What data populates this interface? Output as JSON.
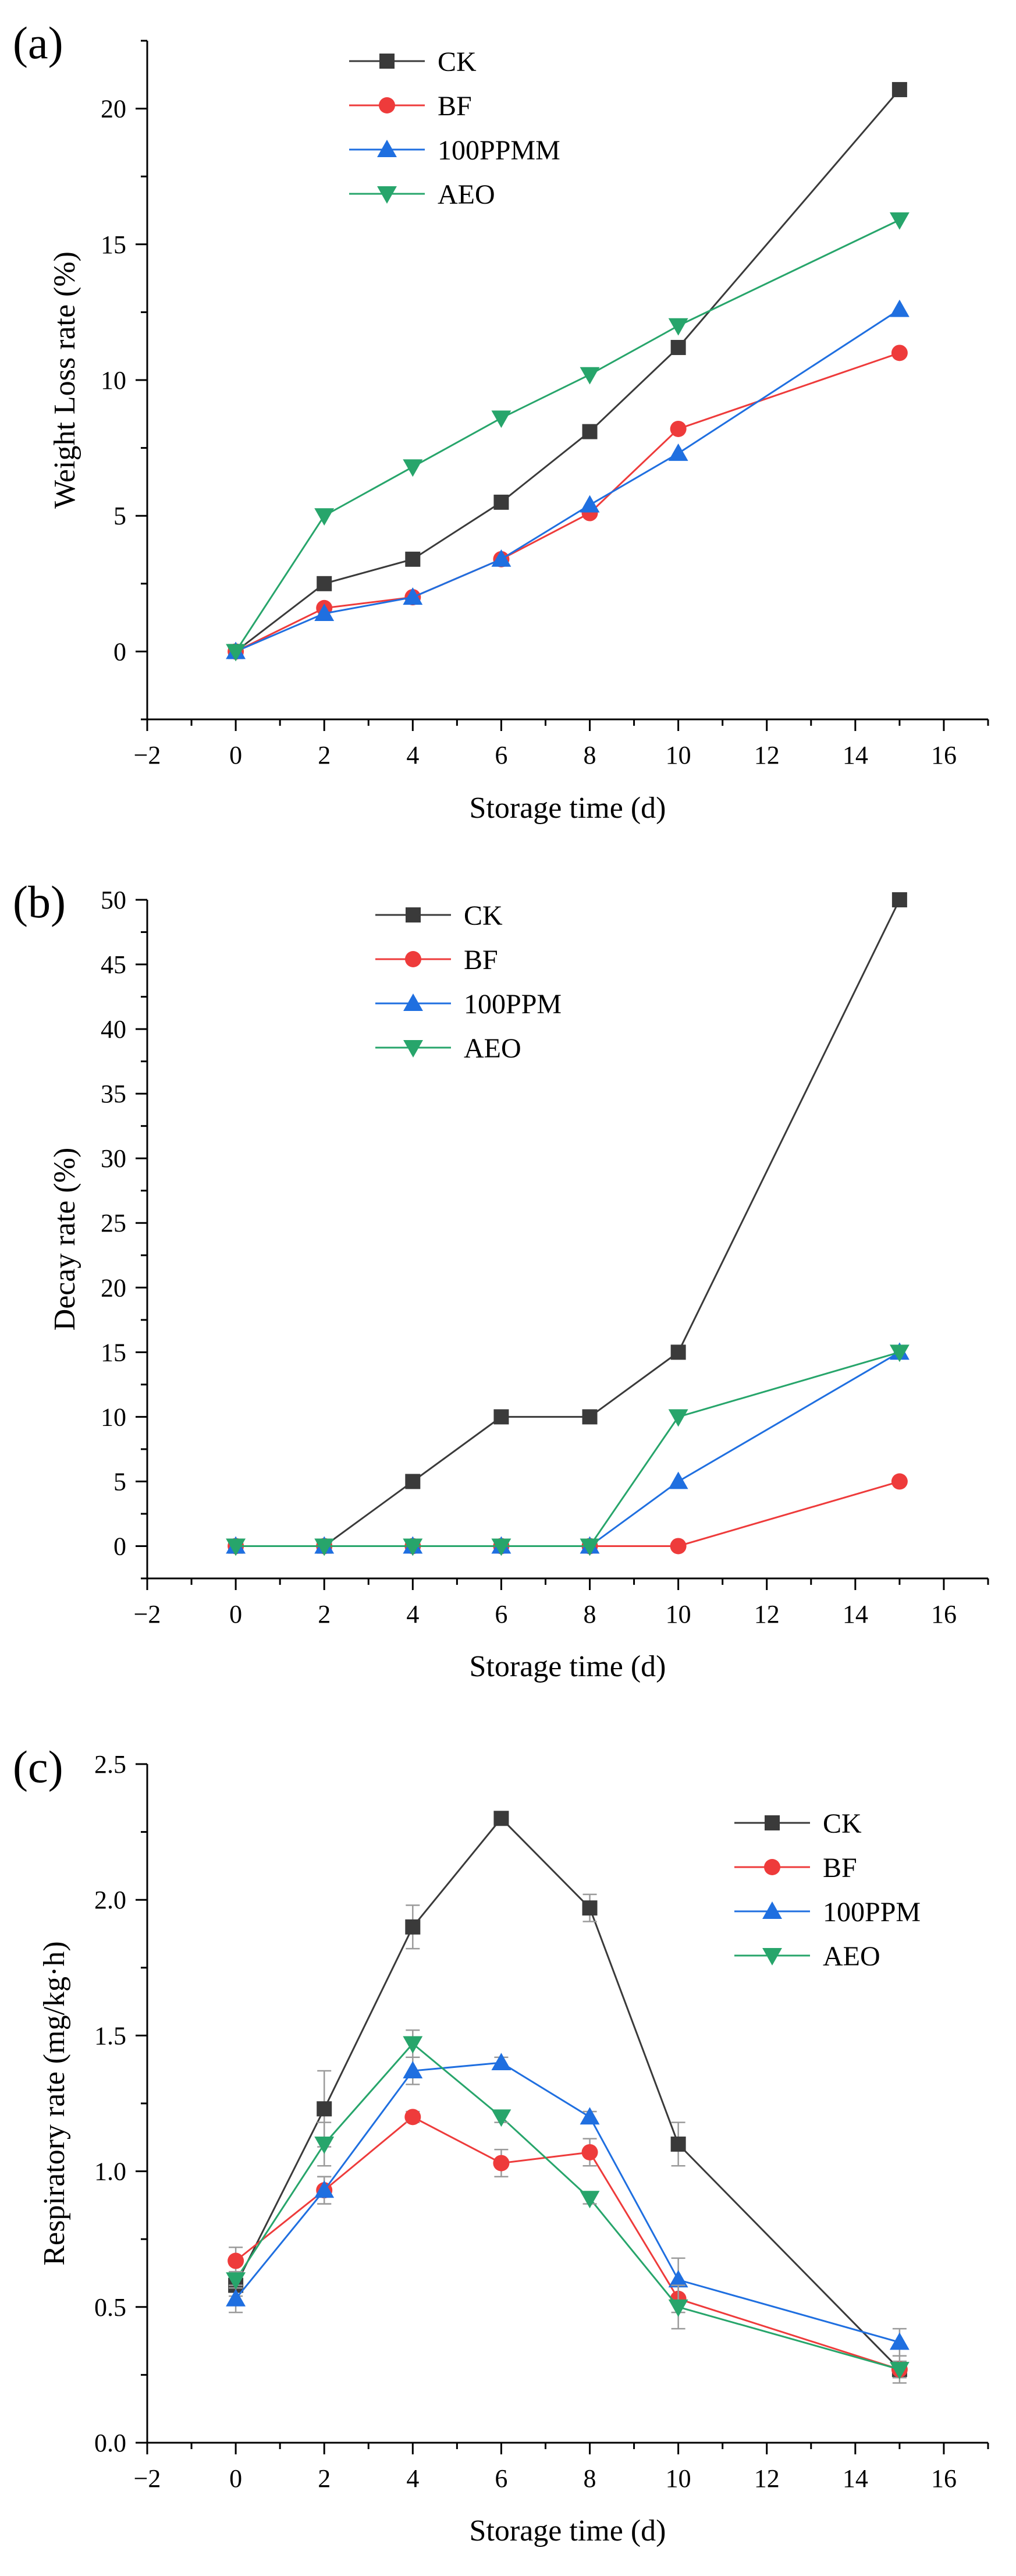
{
  "chart_data": [
    {
      "panel_label": "(a)",
      "type": "line",
      "xlabel": "Storage time (d)",
      "ylabel": "Weight Loss rate (%)",
      "xlim": [
        -2,
        17
      ],
      "ylim": [
        -2.5,
        22.5
      ],
      "xticks": [
        -2,
        0,
        2,
        4,
        6,
        8,
        10,
        12,
        14,
        16
      ],
      "yticks": [
        0,
        5,
        10,
        15,
        20
      ],
      "x": [
        0,
        2,
        4,
        6,
        8,
        10,
        15
      ],
      "legend_position": "top-center",
      "series": [
        {
          "name": "CK",
          "color": "#3a3a3a",
          "marker": "square",
          "values": [
            0,
            2.5,
            3.4,
            5.5,
            8.1,
            11.2,
            20.7
          ]
        },
        {
          "name": "BF",
          "color": "#ee3b3b",
          "marker": "circle",
          "values": [
            0,
            1.6,
            2.0,
            3.4,
            5.1,
            8.2,
            11.0
          ]
        },
        {
          "name": "100PPMM",
          "color": "#1f6fe0",
          "marker": "triangle-up",
          "values": [
            0,
            1.4,
            2.0,
            3.4,
            5.4,
            7.3,
            12.6
          ]
        },
        {
          "name": "AEO",
          "color": "#27a56b",
          "marker": "triangle-down",
          "values": [
            0,
            5.0,
            6.8,
            8.6,
            10.2,
            12.0,
            15.9
          ]
        }
      ]
    },
    {
      "panel_label": "(b)",
      "type": "line",
      "xlabel": "Storage time (d)",
      "ylabel": "Decay rate (%)",
      "xlim": [
        -2,
        17
      ],
      "ylim": [
        -2.5,
        50
      ],
      "xticks": [
        -2,
        0,
        2,
        4,
        6,
        8,
        10,
        12,
        14,
        16
      ],
      "yticks": [
        0,
        5,
        10,
        15,
        20,
        25,
        30,
        35,
        40,
        45,
        50
      ],
      "x": [
        0,
        2,
        4,
        6,
        8,
        10,
        15
      ],
      "legend_position": "top-center",
      "series": [
        {
          "name": "CK",
          "color": "#3a3a3a",
          "marker": "square",
          "values": [
            0,
            0,
            5,
            10,
            10,
            15,
            50
          ]
        },
        {
          "name": "BF",
          "color": "#ee3b3b",
          "marker": "circle",
          "values": [
            0,
            0,
            0,
            0,
            0,
            0,
            5
          ]
        },
        {
          "name": "100PPM",
          "color": "#1f6fe0",
          "marker": "triangle-up",
          "values": [
            0,
            0,
            0,
            0,
            0,
            5,
            15
          ]
        },
        {
          "name": "AEO",
          "color": "#27a56b",
          "marker": "triangle-down",
          "values": [
            0,
            0,
            0,
            0,
            0,
            10,
            15
          ]
        }
      ]
    },
    {
      "panel_label": "(c)",
      "type": "line",
      "xlabel": "Storage time (d)",
      "ylabel": "Respiratory rate (mg/kg·h)",
      "xlim": [
        -2,
        17
      ],
      "ylim": [
        0,
        2.5
      ],
      "xticks": [
        -2,
        0,
        2,
        4,
        6,
        8,
        10,
        12,
        14,
        16
      ],
      "yticks": [
        0.0,
        0.5,
        1.0,
        1.5,
        2.0,
        2.5
      ],
      "ytick_labels": [
        "0.0",
        "0.5",
        "1.0",
        "1.5",
        "2.0",
        "2.5"
      ],
      "x": [
        0,
        2,
        4,
        6,
        8,
        10,
        15
      ],
      "legend_position": "top-right",
      "series": [
        {
          "name": "CK",
          "color": "#3a3a3a",
          "marker": "square",
          "values": [
            0.58,
            1.23,
            1.9,
            2.3,
            1.97,
            1.1,
            0.27
          ],
          "errors": [
            0.04,
            0.14,
            0.08,
            0.02,
            0.05,
            0.08,
            0.03
          ]
        },
        {
          "name": "BF",
          "color": "#ee3b3b",
          "marker": "circle",
          "values": [
            0.67,
            0.93,
            1.2,
            1.03,
            1.07,
            0.53,
            0.27
          ],
          "errors": [
            0.05,
            0.05,
            0.02,
            0.05,
            0.05,
            0.05,
            0.03
          ]
        },
        {
          "name": "100PPM",
          "color": "#1f6fe0",
          "marker": "triangle-up",
          "values": [
            0.53,
            0.93,
            1.37,
            1.4,
            1.2,
            0.6,
            0.37
          ],
          "errors": [
            0.05,
            0.05,
            0.05,
            0.02,
            0.02,
            0.08,
            0.05
          ]
        },
        {
          "name": "AEO",
          "color": "#27a56b",
          "marker": "triangle-down",
          "values": [
            0.6,
            1.1,
            1.47,
            1.2,
            0.9,
            0.5,
            0.27
          ],
          "errors": [
            0.03,
            0.08,
            0.05,
            0.02,
            0.02,
            0.08,
            0.05
          ]
        }
      ]
    }
  ]
}
